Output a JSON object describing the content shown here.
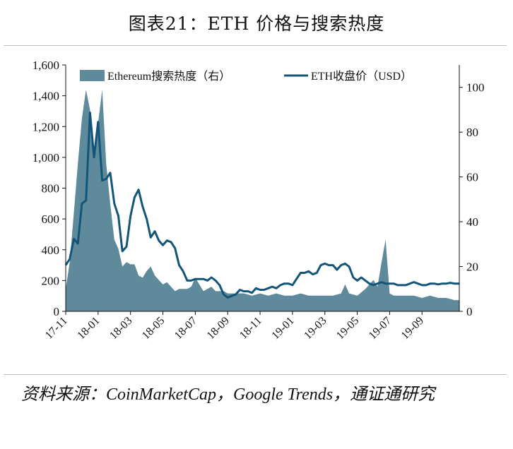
{
  "title": "图表21：ETH 价格与搜索热度",
  "source": "资料来源：CoinMarketCap，Google Trends，通证通研究",
  "chart_data": {
    "type": "area+line",
    "title": "图表21：ETH 价格与搜索热度",
    "x_tick_labels": [
      "17-11",
      "18-01",
      "18-03",
      "18-05",
      "18-07",
      "18-09",
      "18-11",
      "19-01",
      "19-03",
      "19-05",
      "19-07",
      "19-09"
    ],
    "x_range_months": [
      0,
      24.3
    ],
    "y_left": {
      "ticks": [
        "0",
        "200",
        "400",
        "600",
        "800",
        "1,000",
        "1,200",
        "1,400",
        "1,600"
      ],
      "ylim": [
        0,
        1600
      ]
    },
    "y_right": {
      "ticks": [
        "0",
        "20",
        "40",
        "60",
        "80",
        "100"
      ],
      "ylim": [
        0,
        110
      ]
    },
    "legend_position": "top",
    "grid": false,
    "colors": {
      "area": "#5e8a9b",
      "line": "#135578"
    },
    "series": [
      {
        "name": "Ethereum搜索热度（右）",
        "type": "area",
        "axis": "right",
        "x": [
          0.0,
          0.25,
          0.5,
          0.75,
          1.0,
          1.25,
          1.5,
          1.75,
          2.0,
          2.25,
          2.5,
          2.75,
          3.0,
          3.25,
          3.5,
          3.75,
          4.0,
          4.25,
          4.5,
          4.75,
          5.0,
          5.25,
          5.5,
          5.75,
          6.0,
          6.25,
          6.5,
          6.75,
          7.0,
          7.25,
          7.5,
          7.75,
          8.0,
          8.5,
          9.0,
          9.25,
          9.5,
          9.75,
          10.0,
          10.5,
          11.0,
          11.5,
          12.0,
          12.5,
          13.0,
          13.5,
          14.0,
          14.5,
          15.0,
          15.5,
          16.0,
          16.5,
          17.0,
          17.25,
          17.5,
          18.0,
          18.5,
          19.0,
          19.25,
          19.5,
          19.75,
          20.0,
          20.25,
          20.5,
          21.0,
          21.5,
          22.0,
          22.5,
          23.0,
          23.5,
          24.0,
          24.3
        ],
        "values": [
          10,
          22,
          44,
          66,
          86,
          99,
          90,
          68,
          84,
          99,
          66,
          48,
          32,
          28,
          20,
          22,
          21,
          21,
          16,
          15,
          18,
          20,
          16,
          14,
          12,
          13,
          11,
          9,
          10,
          10,
          10,
          11,
          15,
          9,
          11,
          9,
          9,
          9,
          8,
          8,
          8,
          7,
          8,
          7,
          8,
          7,
          7,
          8,
          7,
          7,
          7,
          7,
          8,
          12,
          8,
          7,
          10,
          14,
          11,
          22,
          32,
          8,
          7,
          7,
          7,
          7,
          6,
          7,
          6,
          6,
          5,
          5
        ]
      },
      {
        "name": "ETH收盘价（USD）",
        "type": "line",
        "axis": "left",
        "x": [
          0.0,
          0.25,
          0.5,
          0.75,
          1.0,
          1.25,
          1.5,
          1.75,
          2.0,
          2.25,
          2.5,
          2.75,
          3.0,
          3.25,
          3.5,
          3.75,
          4.0,
          4.25,
          4.5,
          4.75,
          5.0,
          5.25,
          5.5,
          5.75,
          6.0,
          6.25,
          6.5,
          6.75,
          7.0,
          7.25,
          7.5,
          7.75,
          8.0,
          8.25,
          8.5,
          8.75,
          9.0,
          9.25,
          9.5,
          9.75,
          10.0,
          10.25,
          10.5,
          10.75,
          11.0,
          11.25,
          11.5,
          11.75,
          12.0,
          12.25,
          12.5,
          12.75,
          13.0,
          13.25,
          13.5,
          13.75,
          14.0,
          14.25,
          14.5,
          14.75,
          15.0,
          15.25,
          15.5,
          15.75,
          16.0,
          16.25,
          16.5,
          16.75,
          17.0,
          17.25,
          17.5,
          17.75,
          18.0,
          18.25,
          18.5,
          18.75,
          19.0,
          19.25,
          19.5,
          19.75,
          20.0,
          20.25,
          20.5,
          20.75,
          21.0,
          21.25,
          21.5,
          21.75,
          22.0,
          22.25,
          22.5,
          22.75,
          23.0,
          23.25,
          23.5,
          23.75,
          24.0,
          24.3
        ],
        "values": [
          300,
          340,
          470,
          440,
          700,
          720,
          1290,
          1000,
          1230,
          850,
          860,
          900,
          700,
          620,
          390,
          420,
          620,
          740,
          790,
          680,
          600,
          480,
          520,
          460,
          430,
          460,
          450,
          410,
          300,
          260,
          200,
          200,
          210,
          210,
          210,
          200,
          220,
          200,
          170,
          110,
          90,
          100,
          110,
          140,
          130,
          130,
          120,
          150,
          140,
          140,
          150,
          160,
          150,
          170,
          180,
          180,
          170,
          210,
          250,
          250,
          260,
          240,
          250,
          300,
          310,
          300,
          300,
          270,
          300,
          310,
          290,
          220,
          200,
          220,
          200,
          180,
          170,
          180,
          190,
          180,
          180,
          180,
          170,
          170,
          170,
          180,
          190,
          180,
          170,
          170,
          180,
          180,
          175,
          180,
          180,
          185,
          180,
          180
        ]
      }
    ]
  }
}
